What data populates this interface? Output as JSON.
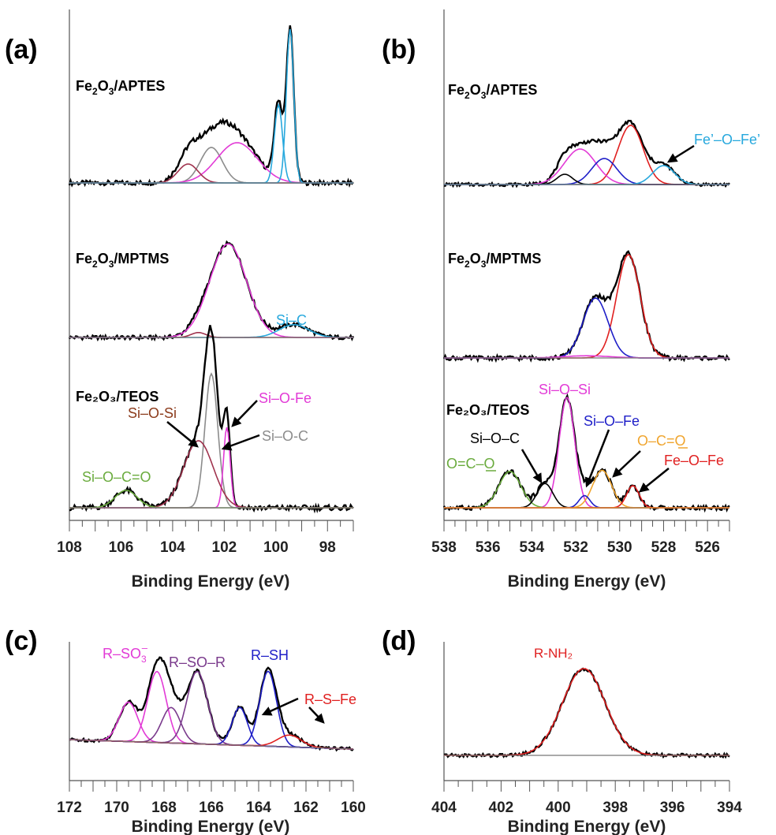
{
  "chart_data": [
    {
      "panel": "(a)",
      "type": "line",
      "xlabel": "Binding Energy (eV)",
      "xlim": [
        108,
        97
      ],
      "xticks": [
        108,
        106,
        104,
        102,
        100,
        98
      ],
      "subplots": [
        {
          "sample_label": {
            "base": "Fe",
            "sub1": "2",
            "mid": "O",
            "sub2": "3",
            "tail": "/APTES"
          },
          "baseline": 0,
          "series": [
            {
              "color": "#000000",
              "peaks": [
                [
                  102.5,
                  0.3,
                  1.0
                ],
                [
                  101.5,
                  0.34,
                  1.1
                ],
                [
                  103.4,
                  0.16,
                  0.55
                ],
                [
                  99.9,
                  0.66,
                  0.22
                ],
                [
                  99.45,
                  1.3,
                  0.2
                ]
              ]
            },
            {
              "color": "#8c8c8c",
              "peaks": [
                [
                  102.5,
                  0.3,
                  0.6
                ]
              ]
            },
            {
              "color": "#e23ad6",
              "peaks": [
                [
                  101.5,
                  0.34,
                  1.1
                ]
              ]
            },
            {
              "color": "#a0334e",
              "peaks": [
                [
                  103.4,
                  0.16,
                  0.55
                ]
              ]
            },
            {
              "color": "#27a8dd",
              "peaks": [
                [
                  99.9,
                  0.66,
                  0.22
                ]
              ]
            },
            {
              "color": "#27a8dd",
              "peaks": [
                [
                  99.45,
                  1.3,
                  0.2
                ]
              ]
            }
          ]
        },
        {
          "sample_label": {
            "base": "Fe",
            "sub1": "2",
            "mid": "O",
            "sub2": "3",
            "tail": "/MPTMS"
          },
          "baseline": 0,
          "series": [
            {
              "color": "#000000",
              "peaks": [
                [
                  101.85,
                  0.95,
                  1.0
                ],
                [
                  99.3,
                  0.13,
                  0.8
                ],
                [
                  103.0,
                  0.05,
                  0.4
                ]
              ]
            },
            {
              "color": "#e23ad6",
              "peaks": [
                [
                  101.85,
                  0.95,
                  1.0
                ]
              ]
            },
            {
              "color": "#27a8dd",
              "peaks": [
                [
                  99.3,
                  0.13,
                  0.8
                ]
              ]
            },
            {
              "color": "#a0334e",
              "peaks": [
                [
                  103.0,
                  0.05,
                  0.4
                ]
              ]
            }
          ],
          "annotations": [
            {
              "text": "Si–C",
              "color": "#27a8dd"
            }
          ]
        },
        {
          "sample_label": {
            "base": "Fe₂O₃/TEOS"
          },
          "baseline": 0,
          "series": [
            {
              "color": "#000000",
              "peaks": [
                [
                  102.5,
                  1.0,
                  0.35
                ],
                [
                  101.9,
                  0.6,
                  0.18
                ],
                [
                  103.0,
                  0.5,
                  0.8
                ],
                [
                  105.8,
                  0.13,
                  0.6
                ]
              ]
            },
            {
              "color": "#8c8c8c",
              "peaks": [
                [
                  102.5,
                  1.0,
                  0.35
                ]
              ]
            },
            {
              "color": "#e23ad6",
              "peaks": [
                [
                  101.9,
                  0.6,
                  0.18
                ]
              ]
            },
            {
              "color": "#a0334e",
              "peaks": [
                [
                  103.0,
                  0.5,
                  0.8
                ]
              ]
            },
            {
              "color": "#6aab3d",
              "peaks": [
                [
                  105.8,
                  0.13,
                  0.6
                ]
              ]
            }
          ],
          "annotations": [
            {
              "text": "Si–O-Fe",
              "color": "#e23ad6"
            },
            {
              "text": "Si–O-Si",
              "color": "#8b3a1a"
            },
            {
              "text": "Si–O-C",
              "color": "#8c8c8c"
            },
            {
              "text": "Si–O–C=O",
              "color": "#6aab3d"
            }
          ]
        }
      ]
    },
    {
      "panel": "(b)",
      "type": "line",
      "xlabel": "Binding Energy (eV)",
      "xlim": [
        538,
        525
      ],
      "xticks": [
        538,
        536,
        534,
        532,
        530,
        528,
        526
      ],
      "subplots": [
        {
          "sample_label": {
            "base": "Fe",
            "sub1": "2",
            "mid": "O",
            "sub2": "3",
            "tail": "/APTES"
          },
          "baseline": 0,
          "series": [
            {
              "color": "#000000",
              "peaks": [
                [
                  529.5,
                  0.75,
                  0.8
                ],
                [
                  531.8,
                  0.45,
                  1.0
                ],
                [
                  530.7,
                  0.33,
                  0.8
                ],
                [
                  532.5,
                  0.13,
                  0.5
                ],
                [
                  528.0,
                  0.24,
                  0.7
                ]
              ]
            },
            {
              "color": "#e02020",
              "peaks": [
                [
                  529.5,
                  0.75,
                  0.8
                ]
              ]
            },
            {
              "color": "#e23ad6",
              "peaks": [
                [
                  531.8,
                  0.45,
                  1.0
                ]
              ]
            },
            {
              "color": "#1f1fc8",
              "peaks": [
                [
                  530.7,
                  0.33,
                  0.8
                ]
              ]
            },
            {
              "color": "#000000",
              "peaks": [
                [
                  532.5,
                  0.13,
                  0.5
                ]
              ]
            },
            {
              "color": "#27a8dd",
              "peaks": [
                [
                  528.0,
                  0.24,
                  0.7
                ]
              ]
            }
          ],
          "annotations": [
            {
              "text": "Fe’–O–Fe’",
              "color": "#27a8dd"
            }
          ]
        },
        {
          "sample_label": {
            "base": "Fe",
            "sub1": "2",
            "mid": "O",
            "sub2": "3",
            "tail": "/MPTMS"
          },
          "baseline": 0,
          "series": [
            {
              "color": "#000000",
              "peaks": [
                [
                  529.6,
                  0.95,
                  0.75
                ],
                [
                  531.1,
                  0.55,
                  0.8
                ]
              ]
            },
            {
              "color": "#e02020",
              "peaks": [
                [
                  529.6,
                  0.95,
                  0.75
                ]
              ]
            },
            {
              "color": "#1f1fc8",
              "peaks": [
                [
                  531.1,
                  0.55,
                  0.8
                ]
              ]
            },
            {
              "color": "#e23ad6",
              "peaks": [
                [
                  531.5,
                  0.02,
                  1.5
                ]
              ]
            }
          ]
        },
        {
          "sample_label": {
            "base": "Fe₂O₃/TEOS"
          },
          "baseline": 0,
          "series": [
            {
              "color": "#000000",
              "peaks": [
                [
                  532.4,
                  1.0,
                  0.5
                ],
                [
                  535.0,
                  0.33,
                  0.7
                ],
                [
                  533.4,
                  0.22,
                  0.5
                ],
                [
                  530.8,
                  0.34,
                  0.6
                ],
                [
                  531.6,
                  0.11,
                  0.35
                ],
                [
                  529.4,
                  0.2,
                  0.4
                ]
              ]
            },
            {
              "color": "#e23ad6",
              "peaks": [
                [
                  532.4,
                  1.0,
                  0.5
                ]
              ]
            },
            {
              "color": "#6aab3d",
              "peaks": [
                [
                  535.0,
                  0.33,
                  0.7
                ]
              ]
            },
            {
              "color": "#000000",
              "peaks": [
                [
                  533.4,
                  0.22,
                  0.5
                ]
              ]
            },
            {
              "color": "#f0a52e",
              "peaks": [
                [
                  530.8,
                  0.34,
                  0.6
                ]
              ]
            },
            {
              "color": "#1f1fc8",
              "peaks": [
                [
                  531.6,
                  0.11,
                  0.35
                ]
              ]
            },
            {
              "color": "#e02020",
              "peaks": [
                [
                  529.4,
                  0.2,
                  0.4
                ]
              ]
            }
          ],
          "annotations": [
            {
              "text": "Si–O–Si",
              "color": "#e23ad6"
            },
            {
              "text": "Si–O–Fe",
              "color": "#1f1fc8"
            },
            {
              "text": "Si–O–C",
              "color": "#000000"
            },
            {
              "text": "O–C=O",
              "underline_last": true,
              "color": "#f0a52e"
            },
            {
              "text": "O=C–O",
              "underline_last": true,
              "color": "#6aab3d"
            },
            {
              "text": "Fe–O–Fe",
              "color": "#e02020"
            }
          ]
        }
      ]
    },
    {
      "panel": "(c)",
      "type": "line",
      "xlabel": "Binding Energy (eV)",
      "xlim": [
        172,
        160
      ],
      "xticks": [
        172,
        170,
        168,
        166,
        164,
        162,
        160
      ],
      "subplots": [
        {
          "baseline_slope": true,
          "series": [
            {
              "color": "#000000",
              "peaks": [
                [
                  169.5,
                  0.5,
                  0.55
                ],
                [
                  168.3,
                  0.9,
                  0.55
                ],
                [
                  167.7,
                  0.45,
                  0.55
                ],
                [
                  166.6,
                  0.92,
                  0.6
                ],
                [
                  164.8,
                  0.48,
                  0.45
                ],
                [
                  163.6,
                  0.95,
                  0.5
                ],
                [
                  162.7,
                  0.15,
                  0.7
                ]
              ]
            },
            {
              "color": "#e23ad6",
              "peaks": [
                [
                  169.5,
                  0.5,
                  0.55
                ]
              ]
            },
            {
              "color": "#e23ad6",
              "peaks": [
                [
                  168.3,
                  0.9,
                  0.55
                ]
              ]
            },
            {
              "color": "#7a3a8c",
              "peaks": [
                [
                  167.7,
                  0.45,
                  0.55
                ]
              ]
            },
            {
              "color": "#7a3a8c",
              "peaks": [
                [
                  166.6,
                  0.92,
                  0.6
                ]
              ]
            },
            {
              "color": "#1f1fc8",
              "peaks": [
                [
                  164.8,
                  0.48,
                  0.45
                ]
              ]
            },
            {
              "color": "#1f1fc8",
              "peaks": [
                [
                  163.6,
                  0.95,
                  0.5
                ]
              ]
            },
            {
              "color": "#e02020",
              "peaks": [
                [
                  162.7,
                  0.15,
                  0.7
                ]
              ]
            }
          ],
          "annotations": [
            {
              "text": "R–SO",
              "sub": "3",
              "sup": "–",
              "color": "#e23ad6"
            },
            {
              "text": "R–SO–R",
              "color": "#7a3a8c"
            },
            {
              "text": "R–SH",
              "color": "#1f1fc8"
            },
            {
              "text": "R–S–Fe",
              "color": "#e02020"
            }
          ]
        }
      ]
    },
    {
      "panel": "(d)",
      "type": "line",
      "xlabel": "Binding Energy (eV)",
      "xlim": [
        404,
        394
      ],
      "xticks": [
        404,
        402,
        400,
        398,
        396,
        394
      ],
      "subplots": [
        {
          "series": [
            {
              "color": "#000000",
              "peaks": [
                [
                  399.1,
                  1.0,
                  1.05
                ]
              ]
            },
            {
              "color": "#e02020",
              "peaks": [
                [
                  399.1,
                  1.0,
                  1.05
                ]
              ]
            }
          ],
          "annotations": [
            {
              "text": "R-NH₂",
              "color": "#e02020"
            }
          ]
        }
      ]
    }
  ]
}
